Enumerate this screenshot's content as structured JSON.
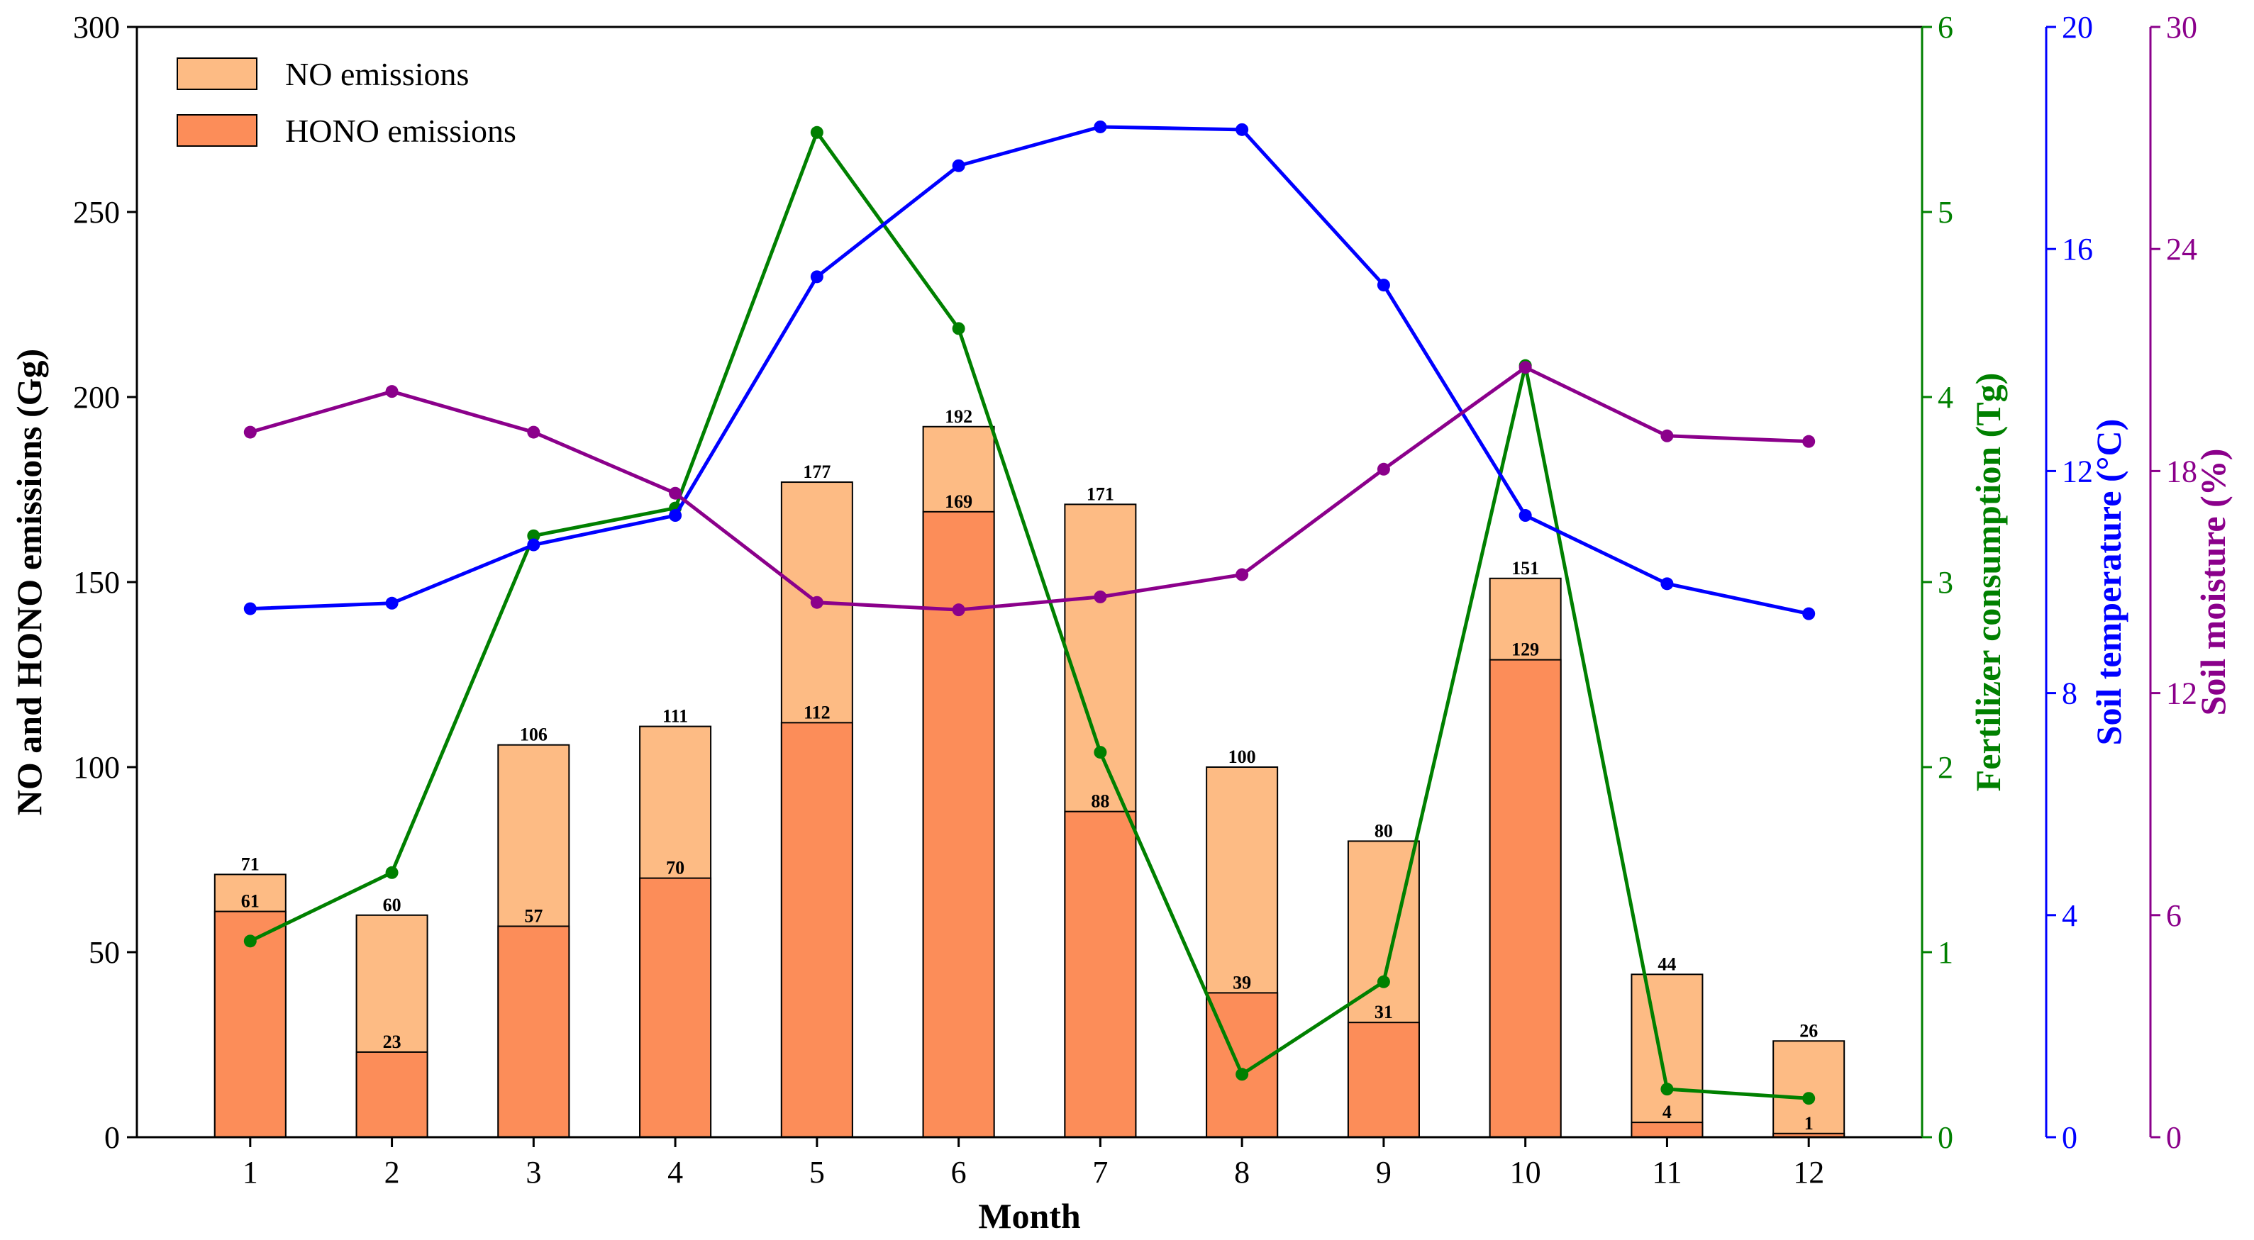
{
  "chart_data": {
    "type": "bar",
    "categories": [
      "1",
      "2",
      "3",
      "4",
      "5",
      "6",
      "7",
      "8",
      "9",
      "10",
      "11",
      "12"
    ],
    "xlabel": "Month",
    "bar_series": [
      {
        "name": "NO emissions",
        "values": [
          71,
          60,
          106,
          111,
          177,
          192,
          171,
          100,
          80,
          151,
          44,
          26
        ],
        "color": "#fdbb84"
      },
      {
        "name": "HONO emissions",
        "values": [
          61,
          23,
          57,
          70,
          112,
          169,
          88,
          39,
          31,
          129,
          4,
          1
        ],
        "color": "#fc8d59"
      }
    ],
    "line_series": [
      {
        "name": "Fertilizer consumption",
        "axis": "fertilizer",
        "color": "#008000",
        "values": [
          1.06,
          1.43,
          3.25,
          3.4,
          5.43,
          4.37,
          2.08,
          0.34,
          0.84,
          4.17,
          0.26,
          0.21
        ]
      },
      {
        "name": "Soil temperature",
        "axis": "temperature",
        "color": "#0000ff",
        "values": [
          9.52,
          9.62,
          10.67,
          11.2,
          15.5,
          17.5,
          18.2,
          18.15,
          15.35,
          11.2,
          9.97,
          9.43
        ]
      },
      {
        "name": "Soil moisture",
        "axis": "moisture",
        "color": "#8b008b",
        "values": [
          19.05,
          20.15,
          19.05,
          17.4,
          14.45,
          14.25,
          14.6,
          15.2,
          18.05,
          20.8,
          18.95,
          18.8
        ]
      }
    ],
    "axes": {
      "left": {
        "label": "NO and HONO emissions (Gg)",
        "ylim": [
          0,
          300
        ],
        "ticks": [
          "0",
          "50",
          "100",
          "150",
          "200",
          "250",
          "300"
        ],
        "color": "#000000"
      },
      "fertilizer": {
        "label": "Fertilizer consumption (Tg)",
        "ylim": [
          0,
          6
        ],
        "ticks": [
          "0",
          "1",
          "2",
          "3",
          "4",
          "5",
          "6"
        ],
        "color": "#008000"
      },
      "temperature": {
        "label": "Soil temperature (°C)",
        "ylim": [
          0,
          20
        ],
        "ticks": [
          "0",
          "4",
          "8",
          "12",
          "16",
          "20"
        ],
        "color": "#0000ff"
      },
      "moisture": {
        "label": "Soil moisture (%)",
        "ylim": [
          0,
          30
        ],
        "ticks": [
          "0",
          "6",
          "12",
          "18",
          "24",
          "30"
        ],
        "color": "#8b008b"
      }
    },
    "legend": {
      "position": "top-left",
      "entries": [
        "NO emissions",
        "HONO emissions"
      ]
    },
    "grid": false
  }
}
